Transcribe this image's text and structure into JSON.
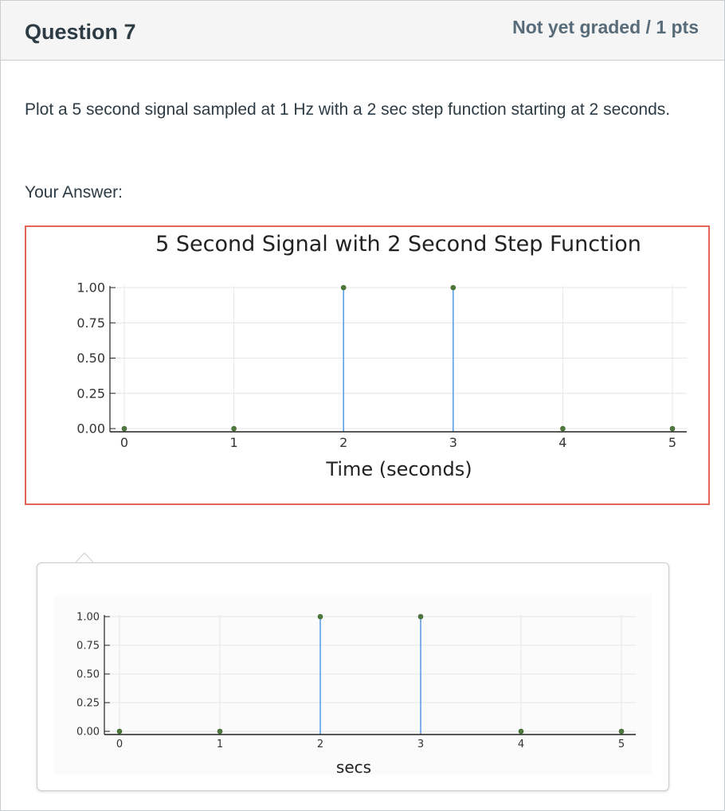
{
  "question": {
    "title": "Question 7",
    "points": "Not yet graded / 1 pts",
    "text": "Plot a 5 second signal sampled at 1 Hz with a 2 sec step function starting at 2 seconds.",
    "answer_label": "Your Answer:"
  },
  "colors": {
    "stem": "#5aa0e6",
    "marker": "#4e7a3c",
    "answer_border": "#e0645a"
  },
  "chart_data": [
    {
      "type": "scatter",
      "title": "5 Second Signal with 2 Second Step Function",
      "xlabel": "Time (seconds)",
      "ylabel": "",
      "x": [
        0,
        1,
        2,
        3,
        4,
        5
      ],
      "y": [
        0,
        0,
        1,
        1,
        0,
        0
      ],
      "xticks": [
        "0",
        "1",
        "2",
        "3",
        "4",
        "5"
      ],
      "yticks": [
        "0.00",
        "0.25",
        "0.50",
        "0.75",
        "1.00"
      ],
      "xlim": [
        0,
        5
      ],
      "ylim": [
        0,
        1
      ],
      "grid": true,
      "stems": true
    },
    {
      "type": "scatter",
      "title": "",
      "xlabel": "secs",
      "ylabel": "",
      "x": [
        0,
        1,
        2,
        3,
        4,
        5
      ],
      "y": [
        0,
        0,
        1,
        1,
        0,
        0
      ],
      "xticks": [
        "0",
        "1",
        "2",
        "3",
        "4",
        "5"
      ],
      "yticks": [
        "0.00",
        "0.25",
        "0.50",
        "0.75",
        "1.00"
      ],
      "xlim": [
        0,
        5
      ],
      "ylim": [
        0,
        1
      ],
      "grid": true,
      "stems": true
    }
  ]
}
